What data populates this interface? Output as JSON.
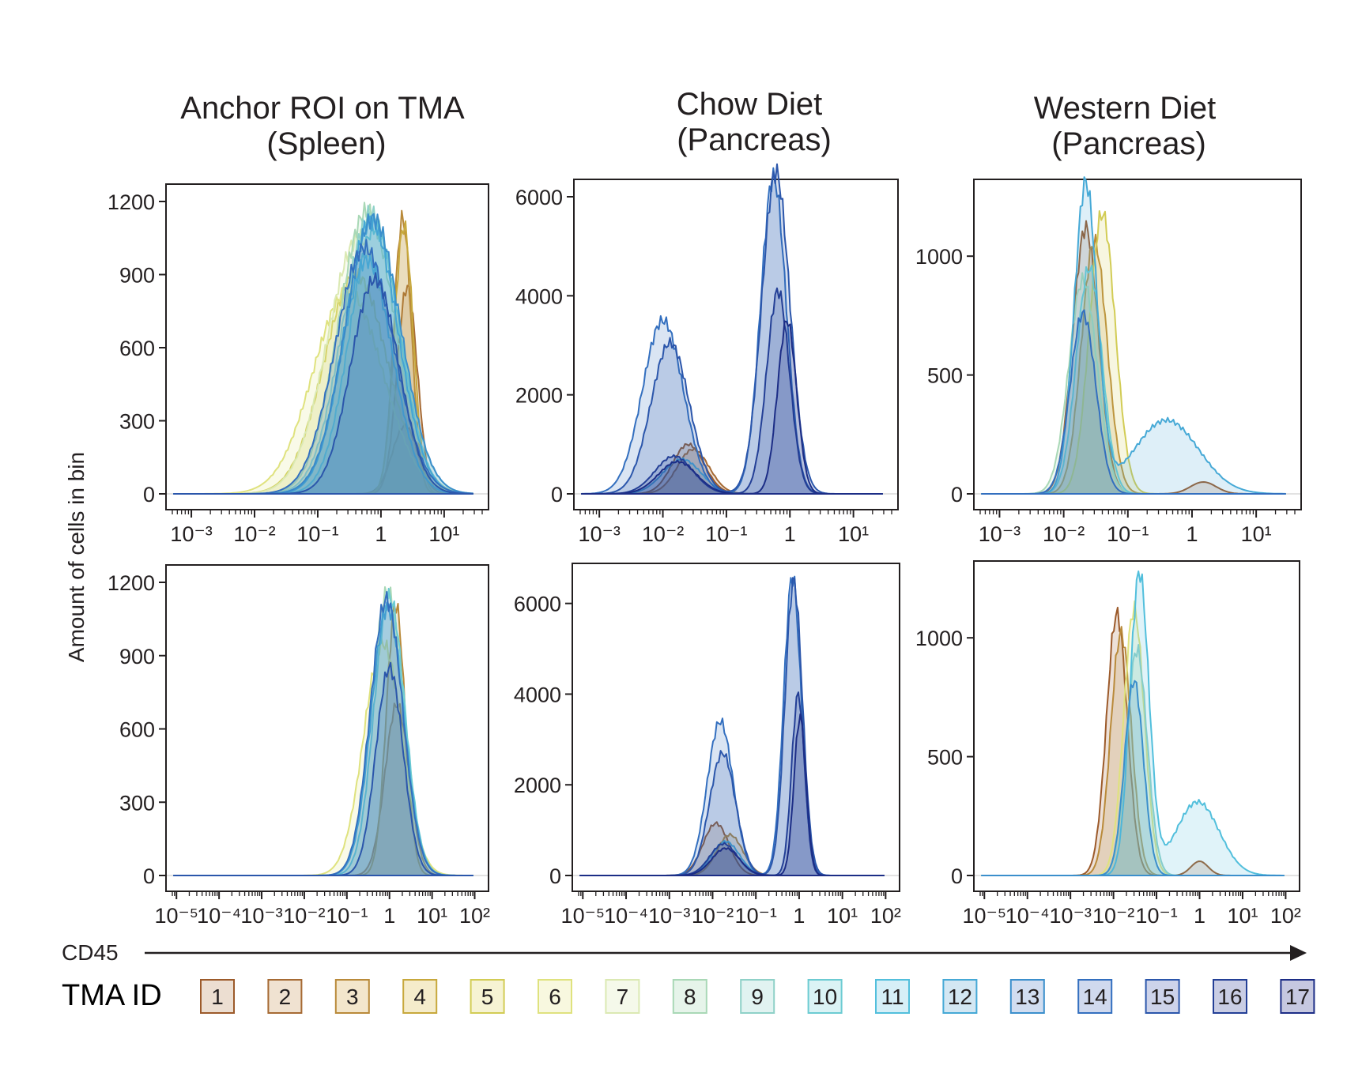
{
  "figure": {
    "column_titles": [
      [
        "Anchor ROI on TMA",
        "(Spleen)"
      ],
      [
        "Chow Diet",
        "(Pancreas)"
      ],
      [
        "Western Diet",
        "(Pancreas)"
      ]
    ],
    "y_axis_label": "Amount of cells in bin",
    "x_axis_label": "CD45",
    "legend": {
      "title": "TMA ID",
      "ids": [
        "1",
        "2",
        "3",
        "4",
        "5",
        "6",
        "7",
        "8",
        "9",
        "10",
        "11",
        "12",
        "13",
        "14",
        "15",
        "16",
        "17"
      ],
      "stroke_colors": [
        "#9c5a2a",
        "#a66a34",
        "#b98a3a",
        "#c7a83c",
        "#d2cc55",
        "#dfe27e",
        "#dbe9b3",
        "#a9d8b6",
        "#8fd1c8",
        "#6ccbd2",
        "#52bfdc",
        "#46a9d6",
        "#3b8fcc",
        "#336fbf",
        "#2b56ab",
        "#233f96",
        "#1c2d86"
      ],
      "fill_colors": [
        "#ecded1",
        "#f0e2d1",
        "#f3e6cc",
        "#f5eccb",
        "#f6f3d3",
        "#f8f8df",
        "#f5f9ea",
        "#e6f4ea",
        "#e1f3f1",
        "#dbf3f5",
        "#d6eff7",
        "#d3e7f3",
        "#d1ddf0",
        "#d0d9ee",
        "#cdd3ea",
        "#c9cde4",
        "#c6c8e0"
      ]
    }
  },
  "chart_data": [
    {
      "type": "area",
      "title": "Anchor ROI on TMA (Spleen)",
      "row": "top",
      "xlabel": "CD45",
      "ylabel": "Amount of cells in bin",
      "x_scale": "log",
      "xlim": [
        0.0005,
        40
      ],
      "ylim": [
        0,
        1200
      ],
      "x_ticks": [
        0.001,
        0.01,
        0.1,
        1,
        10
      ],
      "x_tick_labels": [
        "10⁻³",
        "10⁻²",
        "10⁻¹",
        "1",
        "10¹"
      ],
      "y_ticks": [
        0,
        300,
        600,
        900,
        1200
      ],
      "y_tick_labels": [
        "0",
        "300",
        "600",
        "900",
        "1200"
      ],
      "series": [
        {
          "id": 1,
          "peak_x": 2.4,
          "peak_y": 280,
          "width": 0.2
        },
        {
          "id": 2,
          "peak_x": 2.6,
          "peak_y": 850,
          "width": 0.16
        },
        {
          "id": 3,
          "peak_x": 2.2,
          "peak_y": 1130,
          "width": 0.14
        },
        {
          "id": 4,
          "peak_x": 2.3,
          "peak_y": 1100,
          "width": 0.15
        },
        {
          "id": 5,
          "peak_x": 0.4,
          "peak_y": 900,
          "width": 0.5
        },
        {
          "id": 6,
          "peak_x": 0.3,
          "peak_y": 830,
          "width": 0.55
        },
        {
          "id": 7,
          "peak_x": 0.45,
          "peak_y": 1050,
          "width": 0.5
        },
        {
          "id": 8,
          "peak_x": 0.6,
          "peak_y": 1160,
          "width": 0.45
        },
        {
          "id": 9,
          "peak_x": 0.7,
          "peak_y": 1150,
          "width": 0.45
        },
        {
          "id": 10,
          "peak_x": 0.8,
          "peak_y": 1090,
          "width": 0.4
        },
        {
          "id": 11,
          "peak_x": 0.6,
          "peak_y": 960,
          "width": 0.4
        },
        {
          "id": 12,
          "peak_x": 0.7,
          "peak_y": 1120,
          "width": 0.42
        },
        {
          "id": 13,
          "peak_x": 0.75,
          "peak_y": 1130,
          "width": 0.44
        },
        {
          "id": 14,
          "peak_x": 0.55,
          "peak_y": 1010,
          "width": 0.46
        },
        {
          "id": 15,
          "peak_x": 0.8,
          "peak_y": 880,
          "width": 0.38
        }
      ]
    },
    {
      "type": "area",
      "title": "Chow Diet (Pancreas)",
      "row": "top",
      "xlabel": "CD45",
      "ylabel": "Amount of cells in bin",
      "x_scale": "log",
      "xlim": [
        0.0005,
        40
      ],
      "ylim": [
        0,
        6000
      ],
      "x_ticks": [
        0.001,
        0.01,
        0.1,
        1,
        10
      ],
      "x_tick_labels": [
        "10⁻³",
        "10⁻²",
        "10⁻¹",
        "1",
        "10¹"
      ],
      "y_ticks": [
        0,
        2000,
        4000,
        6000
      ],
      "y_tick_labels": [
        "0",
        "2000",
        "4000",
        "6000"
      ],
      "series": [
        {
          "id": 1,
          "peak_x": 0.025,
          "peak_y": 1000,
          "width": 0.25
        },
        {
          "id": 2,
          "peak_x": 0.03,
          "peak_y": 900,
          "width": 0.25
        },
        {
          "id": 12,
          "peak_x": 0.02,
          "peak_y": 700,
          "width": 0.3
        },
        {
          "id": 14,
          "peak_x": 0.01,
          "peak_y": 3500,
          "width": 0.32,
          "peak2_x": 0.55,
          "peak2_y": 6400,
          "width2": 0.2
        },
        {
          "id": 15,
          "peak_x": 0.013,
          "peak_y": 3050,
          "width": 0.3,
          "peak2_x": 0.6,
          "peak2_y": 6500,
          "width2": 0.22
        },
        {
          "id": 16,
          "peak_x": 0.015,
          "peak_y": 760,
          "width": 0.3,
          "peak2_x": 0.65,
          "peak2_y": 4100,
          "width2": 0.18
        },
        {
          "id": 17,
          "peak_x": 0.017,
          "peak_y": 650,
          "width": 0.3,
          "peak2_x": 0.9,
          "peak2_y": 3500,
          "width2": 0.15
        }
      ]
    },
    {
      "type": "area",
      "title": "Western Diet (Pancreas)",
      "row": "top",
      "xlabel": "CD45",
      "ylabel": "Amount of cells in bin",
      "x_scale": "log",
      "xlim": [
        0.0005,
        40
      ],
      "ylim": [
        0,
        1250
      ],
      "x_ticks": [
        0.001,
        0.01,
        0.1,
        1,
        10
      ],
      "x_tick_labels": [
        "10⁻³",
        "10⁻²",
        "10⁻¹",
        "1",
        "10¹"
      ],
      "y_ticks": [
        0,
        500,
        1000
      ],
      "y_tick_labels": [
        "0",
        "500",
        "1000"
      ],
      "series": [
        {
          "id": 1,
          "peak_x": 0.022,
          "peak_y": 1120,
          "width": 0.2,
          "peak2_x": 1.5,
          "peak2_y": 50,
          "width2": 0.2
        },
        {
          "id": 3,
          "peak_x": 0.03,
          "peak_y": 1060,
          "width": 0.2
        },
        {
          "id": 5,
          "peak_x": 0.04,
          "peak_y": 1180,
          "width": 0.2
        },
        {
          "id": 8,
          "peak_x": 0.02,
          "peak_y": 900,
          "width": 0.22
        },
        {
          "id": 10,
          "peak_x": 0.025,
          "peak_y": 950,
          "width": 0.2
        },
        {
          "id": 12,
          "peak_x": 0.022,
          "peak_y": 1300,
          "width": 0.18,
          "peak2_x": 0.4,
          "peak2_y": 310,
          "width2": 0.5
        },
        {
          "id": 14,
          "peak_x": 0.02,
          "peak_y": 760,
          "width": 0.2
        }
      ]
    },
    {
      "type": "area",
      "title": "Anchor ROI on TMA (Spleen)",
      "row": "bottom",
      "xlabel": "CD45",
      "ylabel": "Amount of cells in bin",
      "x_scale": "log",
      "xlim": [
        8e-06,
        150
      ],
      "ylim": [
        0,
        1200
      ],
      "x_ticks": [
        1e-05,
        0.0001,
        0.001,
        0.01,
        0.1,
        1,
        10,
        100
      ],
      "x_tick_labels": [
        "10⁻⁵",
        "10⁻⁴",
        "10⁻³",
        "10⁻²",
        "10⁻¹",
        "1",
        "10¹",
        "10²"
      ],
      "y_ticks": [
        0,
        300,
        600,
        900,
        1200
      ],
      "y_tick_labels": [
        "0",
        "300",
        "600",
        "900",
        "1200"
      ],
      "series": [
        {
          "id": 2,
          "peak_x": 1.5,
          "peak_y": 700,
          "width": 0.28
        },
        {
          "id": 3,
          "peak_x": 1.4,
          "peak_y": 1110,
          "width": 0.22
        },
        {
          "id": 6,
          "peak_x": 0.7,
          "peak_y": 950,
          "width": 0.45
        },
        {
          "id": 8,
          "peak_x": 0.9,
          "peak_y": 1160,
          "width": 0.38
        },
        {
          "id": 10,
          "peak_x": 1.0,
          "peak_y": 1140,
          "width": 0.36
        },
        {
          "id": 12,
          "peak_x": 0.9,
          "peak_y": 1100,
          "width": 0.38
        },
        {
          "id": 14,
          "peak_x": 0.85,
          "peak_y": 1130,
          "width": 0.38
        },
        {
          "id": 15,
          "peak_x": 1.0,
          "peak_y": 850,
          "width": 0.32
        }
      ]
    },
    {
      "type": "area",
      "title": "Chow Diet (Pancreas)",
      "row": "bottom",
      "xlabel": "CD45",
      "ylabel": "Amount of cells in bin",
      "x_scale": "log",
      "xlim": [
        8e-06,
        150
      ],
      "ylim": [
        0,
        6500
      ],
      "x_ticks": [
        1e-05,
        0.0001,
        0.001,
        0.01,
        0.1,
        1,
        10,
        100
      ],
      "x_tick_labels": [
        "10⁻⁵",
        "10⁻⁴",
        "10⁻³",
        "10⁻²",
        "10⁻¹",
        "1",
        "10¹",
        "10²"
      ],
      "y_ticks": [
        0,
        2000,
        4000,
        6000
      ],
      "y_tick_labels": [
        "0",
        "2000",
        "4000",
        "6000"
      ],
      "series": [
        {
          "id": 1,
          "peak_x": 0.012,
          "peak_y": 1150,
          "width": 0.3
        },
        {
          "id": 3,
          "peak_x": 0.025,
          "peak_y": 900,
          "width": 0.3
        },
        {
          "id": 12,
          "peak_x": 0.02,
          "peak_y": 750,
          "width": 0.32
        },
        {
          "id": 14,
          "peak_x": 0.015,
          "peak_y": 3400,
          "width": 0.3,
          "peak2_x": 0.7,
          "peak2_y": 6600,
          "width2": 0.2
        },
        {
          "id": 15,
          "peak_x": 0.017,
          "peak_y": 2700,
          "width": 0.3,
          "peak2_x": 0.75,
          "peak2_y": 6500,
          "width2": 0.2
        },
        {
          "id": 16,
          "peak_x": 0.018,
          "peak_y": 700,
          "width": 0.32,
          "peak2_x": 0.95,
          "peak2_y": 4000,
          "width2": 0.15
        },
        {
          "id": 17,
          "peak_x": 0.02,
          "peak_y": 600,
          "width": 0.32,
          "peak2_x": 1.05,
          "peak2_y": 3500,
          "width2": 0.14
        }
      ]
    },
    {
      "type": "area",
      "title": "Western Diet (Pancreas)",
      "row": "bottom",
      "xlabel": "CD45",
      "ylabel": "Amount of cells in bin",
      "x_scale": "log",
      "xlim": [
        8e-06,
        150
      ],
      "ylim": [
        0,
        1250
      ],
      "x_ticks": [
        1e-05,
        0.0001,
        0.001,
        0.01,
        0.1,
        1,
        10,
        100
      ],
      "x_tick_labels": [
        "10⁻⁵",
        "10⁻⁴",
        "10⁻³",
        "10⁻²",
        "10⁻¹",
        "1",
        "10¹",
        "10²"
      ],
      "y_ticks": [
        0,
        500,
        1000
      ],
      "y_tick_labels": [
        "0",
        "500",
        "1000"
      ],
      "series": [
        {
          "id": 1,
          "peak_x": 0.012,
          "peak_y": 1100,
          "width": 0.24,
          "peak2_x": 1.0,
          "peak2_y": 60,
          "width2": 0.2
        },
        {
          "id": 3,
          "peak_x": 0.015,
          "peak_y": 1020,
          "width": 0.24
        },
        {
          "id": 6,
          "peak_x": 0.03,
          "peak_y": 1120,
          "width": 0.24
        },
        {
          "id": 9,
          "peak_x": 0.035,
          "peak_y": 950,
          "width": 0.24
        },
        {
          "id": 11,
          "peak_x": 0.04,
          "peak_y": 1270,
          "width": 0.22,
          "peak2_x": 0.9,
          "peak2_y": 310,
          "width2": 0.5
        },
        {
          "id": 13,
          "peak_x": 0.03,
          "peak_y": 820,
          "width": 0.22
        }
      ]
    }
  ]
}
